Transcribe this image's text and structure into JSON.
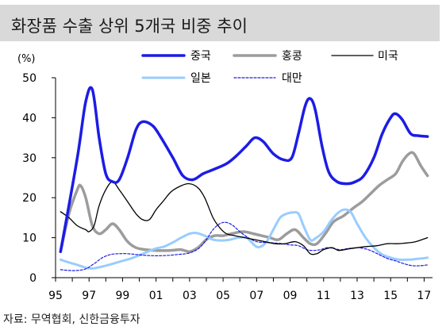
{
  "title": "화장품 수출 상위 5개국 비중 추이",
  "source": "자료: 무역협회, 신한금융투자",
  "chart_data": {
    "type": "line",
    "ylabel": "(%)",
    "ylim": [
      0,
      50
    ],
    "yticks": [
      0,
      10,
      20,
      30,
      40,
      50
    ],
    "xlim": [
      1995,
      2017.5
    ],
    "xticks": [
      1995,
      1997,
      1999,
      2001,
      2003,
      2005,
      2007,
      2009,
      2011,
      2013,
      2015,
      2017
    ],
    "xtick_labels": [
      "95",
      "97",
      "99",
      "01",
      "03",
      "05",
      "07",
      "09",
      "11",
      "13",
      "15",
      "17"
    ],
    "grid": false,
    "legend": "top",
    "series": [
      {
        "name": "중국",
        "color": "#1c1ce6",
        "width": 3.5,
        "dash": "",
        "points": [
          [
            1995.3,
            6.5
          ],
          [
            1996.3,
            30
          ],
          [
            1996.8,
            44
          ],
          [
            1997.2,
            47
          ],
          [
            1997.6,
            35
          ],
          [
            1998.0,
            26
          ],
          [
            1998.4,
            24
          ],
          [
            1998.8,
            24.5
          ],
          [
            1999.3,
            30
          ],
          [
            1999.8,
            37
          ],
          [
            2000.2,
            39
          ],
          [
            2000.8,
            38
          ],
          [
            2001.3,
            35
          ],
          [
            2002.0,
            30
          ],
          [
            2002.6,
            25.5
          ],
          [
            2003.2,
            24.5
          ],
          [
            2003.8,
            26
          ],
          [
            2004.4,
            27
          ],
          [
            2005.2,
            28.5
          ],
          [
            2005.8,
            30.5
          ],
          [
            2006.4,
            33
          ],
          [
            2006.9,
            35
          ],
          [
            2007.4,
            34
          ],
          [
            2008.0,
            31
          ],
          [
            2008.6,
            29.5
          ],
          [
            2009.1,
            30
          ],
          [
            2009.5,
            36
          ],
          [
            2009.9,
            43
          ],
          [
            2010.2,
            44.8
          ],
          [
            2010.5,
            42
          ],
          [
            2010.9,
            33
          ],
          [
            2011.3,
            26.5
          ],
          [
            2011.8,
            24
          ],
          [
            2012.4,
            23.5
          ],
          [
            2012.9,
            24
          ],
          [
            2013.4,
            25.5
          ],
          [
            2014.0,
            30
          ],
          [
            2014.5,
            36
          ],
          [
            2015.0,
            40
          ],
          [
            2015.3,
            41
          ],
          [
            2015.7,
            39.5
          ],
          [
            2016.2,
            36
          ],
          [
            2016.7,
            35.5
          ],
          [
            2017.2,
            35.3
          ]
        ]
      },
      {
        "name": "홍콩",
        "color": "#9c9c9c",
        "width": 3.5,
        "dash": "",
        "points": [
          [
            1995.3,
            6.5
          ],
          [
            1995.8,
            16
          ],
          [
            1996.3,
            22
          ],
          [
            1996.5,
            23
          ],
          [
            1996.8,
            20
          ],
          [
            1997.2,
            13
          ],
          [
            1997.6,
            11
          ],
          [
            1998.0,
            12
          ],
          [
            1998.4,
            13.5
          ],
          [
            1998.8,
            12
          ],
          [
            1999.3,
            9
          ],
          [
            1999.8,
            7.5
          ],
          [
            2000.4,
            7
          ],
          [
            2001.0,
            6.8
          ],
          [
            2001.8,
            6.8
          ],
          [
            2002.5,
            7
          ],
          [
            2003.0,
            6.5
          ],
          [
            2003.5,
            7.5
          ],
          [
            2004.0,
            9.5
          ],
          [
            2004.5,
            10.5
          ],
          [
            2005.0,
            10.5
          ],
          [
            2005.5,
            11
          ],
          [
            2006.2,
            11.5
          ],
          [
            2006.8,
            11
          ],
          [
            2007.3,
            10.5
          ],
          [
            2007.8,
            10
          ],
          [
            2008.3,
            9.5
          ],
          [
            2008.8,
            11
          ],
          [
            2009.3,
            12
          ],
          [
            2009.8,
            10
          ],
          [
            2010.2,
            8.5
          ],
          [
            2010.6,
            8.5
          ],
          [
            2011.1,
            11
          ],
          [
            2011.6,
            14
          ],
          [
            2012.2,
            15.5
          ],
          [
            2012.8,
            17.5
          ],
          [
            2013.3,
            19
          ],
          [
            2013.8,
            21
          ],
          [
            2014.3,
            23
          ],
          [
            2014.8,
            24.5
          ],
          [
            2015.3,
            26
          ],
          [
            2015.7,
            29
          ],
          [
            2016.1,
            31
          ],
          [
            2016.4,
            31
          ],
          [
            2016.8,
            28
          ],
          [
            2017.2,
            25.5
          ]
        ]
      },
      {
        "name": "미국",
        "color": "#000000",
        "width": 1.3,
        "dash": "",
        "points": [
          [
            1995.3,
            16.5
          ],
          [
            1995.8,
            15
          ],
          [
            1996.3,
            13
          ],
          [
            1996.8,
            12
          ],
          [
            1997.0,
            11.5
          ],
          [
            1997.3,
            13
          ],
          [
            1997.6,
            18
          ],
          [
            1998.0,
            22
          ],
          [
            1998.4,
            24
          ],
          [
            1998.8,
            22
          ],
          [
            1999.3,
            19
          ],
          [
            1999.8,
            16
          ],
          [
            2000.2,
            14.5
          ],
          [
            2000.6,
            14.5
          ],
          [
            2001.0,
            17
          ],
          [
            2001.4,
            19
          ],
          [
            2001.9,
            21.5
          ],
          [
            2002.5,
            23
          ],
          [
            2003.0,
            23.5
          ],
          [
            2003.5,
            22.5
          ],
          [
            2003.9,
            20
          ],
          [
            2004.4,
            15
          ],
          [
            2004.8,
            12.5
          ],
          [
            2005.2,
            11
          ],
          [
            2005.7,
            10.5
          ],
          [
            2006.3,
            10
          ],
          [
            2006.9,
            9.5
          ],
          [
            2007.5,
            9
          ],
          [
            2008.1,
            8.5
          ],
          [
            2008.7,
            8.5
          ],
          [
            2009.3,
            9
          ],
          [
            2009.8,
            8
          ],
          [
            2010.2,
            6
          ],
          [
            2010.6,
            6
          ],
          [
            2011.0,
            7
          ],
          [
            2011.5,
            7.5
          ],
          [
            2011.9,
            6.8
          ],
          [
            2012.5,
            7.2
          ],
          [
            2013.0,
            7.5
          ],
          [
            2013.6,
            7.8
          ],
          [
            2014.2,
            8
          ],
          [
            2014.8,
            8.5
          ],
          [
            2015.4,
            8.5
          ],
          [
            2016.0,
            8.7
          ],
          [
            2016.5,
            9
          ],
          [
            2017.2,
            10
          ]
        ]
      },
      {
        "name": "일본",
        "color": "#99ccff",
        "width": 3,
        "dash": "",
        "points": [
          [
            1995.3,
            4.5
          ],
          [
            1995.8,
            3.8
          ],
          [
            1996.3,
            3.2
          ],
          [
            1996.8,
            2.5
          ],
          [
            1997.2,
            2.3
          ],
          [
            1997.6,
            2.6
          ],
          [
            1998.0,
            3
          ],
          [
            1998.5,
            3.6
          ],
          [
            1999.0,
            4.2
          ],
          [
            1999.5,
            4.8
          ],
          [
            2000.0,
            5.6
          ],
          [
            2000.5,
            6.5
          ],
          [
            2001.0,
            7.3
          ],
          [
            2001.5,
            7.8
          ],
          [
            2002.0,
            8.8
          ],
          [
            2002.5,
            10
          ],
          [
            2003.0,
            11
          ],
          [
            2003.4,
            11.2
          ],
          [
            2003.9,
            10.5
          ],
          [
            2004.4,
            9.5
          ],
          [
            2004.9,
            9.3
          ],
          [
            2005.4,
            9.5
          ],
          [
            2005.9,
            10
          ],
          [
            2006.4,
            10
          ],
          [
            2006.9,
            8
          ],
          [
            2007.2,
            7.7
          ],
          [
            2007.6,
            9
          ],
          [
            2008.0,
            12
          ],
          [
            2008.4,
            15
          ],
          [
            2008.8,
            16
          ],
          [
            2009.2,
            16.3
          ],
          [
            2009.5,
            16
          ],
          [
            2009.8,
            13
          ],
          [
            2010.2,
            9.5
          ],
          [
            2010.5,
            9.8
          ],
          [
            2011.0,
            11.5
          ],
          [
            2011.4,
            14
          ],
          [
            2011.8,
            16
          ],
          [
            2012.2,
            17
          ],
          [
            2012.6,
            16.5
          ],
          [
            2013.0,
            13.5
          ],
          [
            2013.5,
            10
          ],
          [
            2014.0,
            7.5
          ],
          [
            2014.5,
            5.8
          ],
          [
            2015.0,
            5
          ],
          [
            2015.5,
            4.5
          ],
          [
            2016.1,
            4.5
          ],
          [
            2016.6,
            4.7
          ],
          [
            2017.2,
            5
          ]
        ]
      },
      {
        "name": "대만",
        "color": "#1c1ce6",
        "width": 1.2,
        "dash": "3,2",
        "points": [
          [
            1995.3,
            2
          ],
          [
            1995.8,
            1.8
          ],
          [
            1996.3,
            1.8
          ],
          [
            1996.8,
            2.2
          ],
          [
            1997.3,
            3.5
          ],
          [
            1997.8,
            5
          ],
          [
            1998.3,
            5.8
          ],
          [
            1998.8,
            6
          ],
          [
            1999.3,
            6
          ],
          [
            1999.8,
            5.8
          ],
          [
            2000.3,
            5.6
          ],
          [
            2000.8,
            5.5
          ],
          [
            2001.3,
            5.5
          ],
          [
            2001.8,
            5.6
          ],
          [
            2002.3,
            5.8
          ],
          [
            2002.8,
            6
          ],
          [
            2003.2,
            6.5
          ],
          [
            2003.6,
            7.5
          ],
          [
            2004.0,
            9.5
          ],
          [
            2004.4,
            12
          ],
          [
            2004.8,
            13.5
          ],
          [
            2005.2,
            13.8
          ],
          [
            2005.6,
            13
          ],
          [
            2006.0,
            11.5
          ],
          [
            2006.5,
            10
          ],
          [
            2007.0,
            9
          ],
          [
            2007.5,
            8.8
          ],
          [
            2008.0,
            8.7
          ],
          [
            2008.5,
            8.5
          ],
          [
            2009.0,
            8.2
          ],
          [
            2009.5,
            8
          ],
          [
            2010.0,
            7
          ],
          [
            2010.4,
            6.8
          ],
          [
            2010.8,
            7
          ],
          [
            2011.2,
            7.5
          ],
          [
            2011.6,
            7.3
          ],
          [
            2012.0,
            7
          ],
          [
            2012.5,
            7.3
          ],
          [
            2013.0,
            7.5
          ],
          [
            2013.4,
            7.3
          ],
          [
            2013.8,
            6.8
          ],
          [
            2014.3,
            5.8
          ],
          [
            2014.8,
            4.8
          ],
          [
            2015.3,
            4.2
          ],
          [
            2015.8,
            3.5
          ],
          [
            2016.3,
            3
          ],
          [
            2016.8,
            3
          ],
          [
            2017.2,
            3.2
          ]
        ]
      }
    ]
  }
}
